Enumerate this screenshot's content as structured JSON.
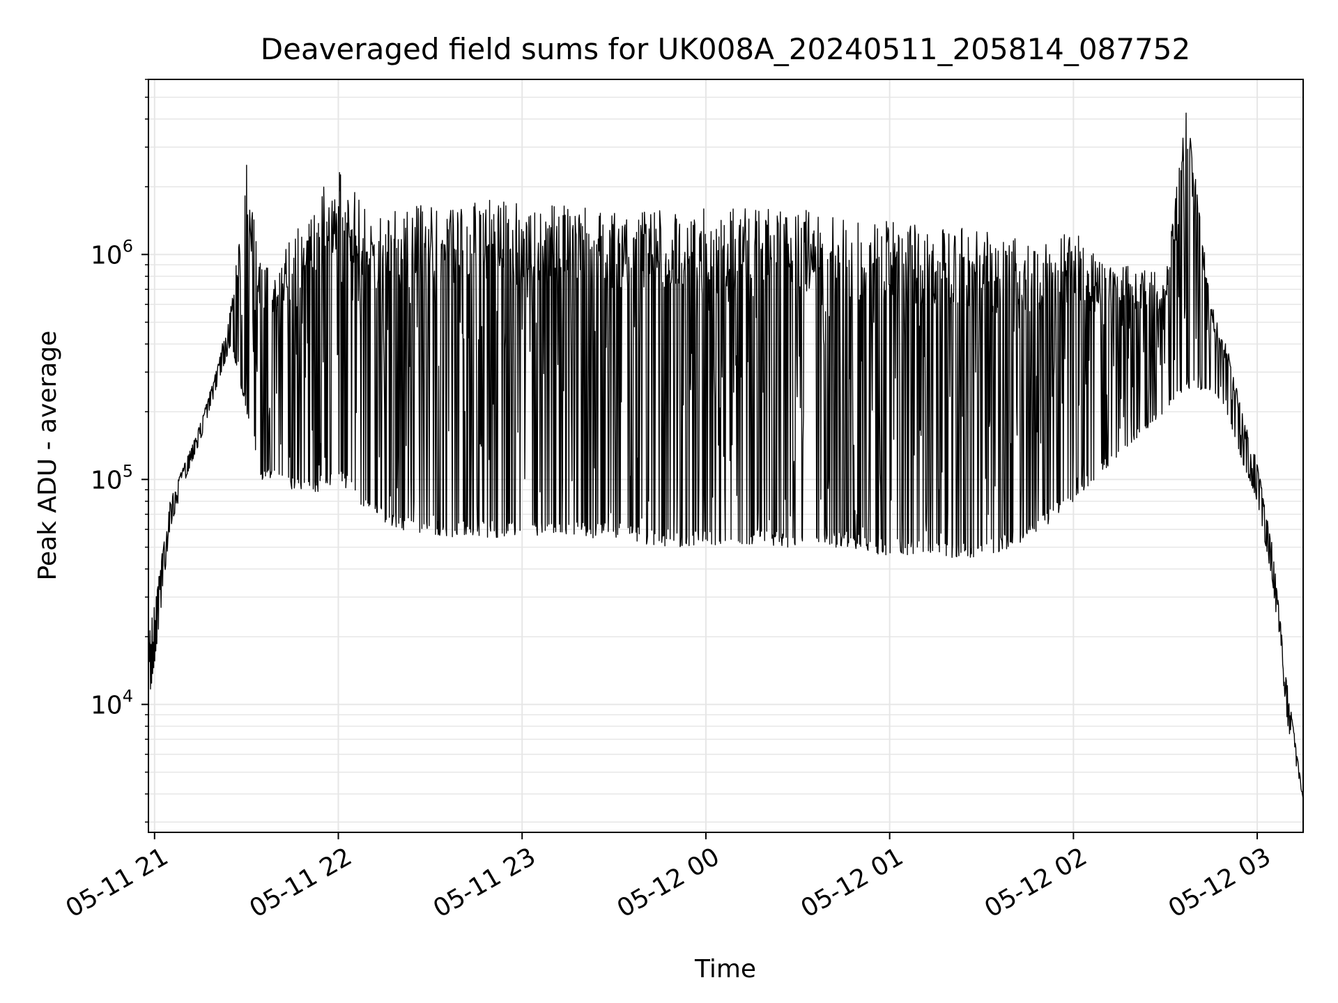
{
  "chart_data": {
    "type": "line",
    "title": "Deaveraged field sums for UK008A_20240511_205814_087752",
    "xlabel": "Time",
    "ylabel": "Peak ADU - average",
    "y_scale": "log",
    "grid": true,
    "line_color": "#000000",
    "grid_color": "#e6e6e6",
    "xlim": [
      "2024-05-11 20:58",
      "2024-05-12 03:15"
    ],
    "ylim": [
      2700,
      6000000
    ],
    "x_ticks": [
      {
        "value": "2024-05-11 21:00",
        "label": "05-11 21"
      },
      {
        "value": "2024-05-11 22:00",
        "label": "05-11 22"
      },
      {
        "value": "2024-05-11 23:00",
        "label": "05-11 23"
      },
      {
        "value": "2024-05-12 00:00",
        "label": "05-12 00"
      },
      {
        "value": "2024-05-12 01:00",
        "label": "05-12 01"
      },
      {
        "value": "2024-05-12 02:00",
        "label": "05-12 02"
      },
      {
        "value": "2024-05-12 03:00",
        "label": "05-12 03"
      }
    ],
    "y_ticks": [
      {
        "value": 10000,
        "base": "10",
        "exp": "4"
      },
      {
        "value": 100000,
        "base": "10",
        "exp": "5"
      },
      {
        "value": 1000000,
        "base": "10",
        "exp": "6"
      }
    ],
    "series": [
      {
        "x": [
          "2024-05-11 20:58",
          "2024-05-11 21:00",
          "2024-05-11 21:05",
          "2024-05-11 21:10",
          "2024-05-11 21:15",
          "2024-05-11 21:20",
          "2024-05-11 21:25",
          "2024-05-11 21:30",
          "2024-05-11 21:35",
          "2024-05-11 21:40",
          "2024-05-11 21:45",
          "2024-05-11 21:50",
          "2024-05-11 21:55",
          "2024-05-11 22:00",
          "2024-05-11 22:10",
          "2024-05-11 22:20",
          "2024-05-11 22:30",
          "2024-05-11 22:40",
          "2024-05-11 22:50",
          "2024-05-11 23:00",
          "2024-05-11 23:15",
          "2024-05-11 23:30",
          "2024-05-11 23:45",
          "2024-05-12 00:00",
          "2024-05-12 00:15",
          "2024-05-12 00:30",
          "2024-05-12 00:45",
          "2024-05-12 01:00",
          "2024-05-12 01:15",
          "2024-05-12 01:30",
          "2024-05-12 01:40",
          "2024-05-12 01:50",
          "2024-05-12 02:00",
          "2024-05-12 02:10",
          "2024-05-12 02:20",
          "2024-05-12 02:30",
          "2024-05-12 02:37",
          "2024-05-12 02:45",
          "2024-05-12 02:50",
          "2024-05-12 02:55",
          "2024-05-12 03:00",
          "2024-05-12 03:05",
          "2024-05-12 03:10",
          "2024-05-12 03:15"
        ],
        "envelope_high": [
          20000,
          30000,
          80000,
          120000,
          180000,
          300000,
          600000,
          2600000,
          900000,
          1000000,
          1300000,
          1500000,
          2000000,
          2400000,
          1600000,
          1600000,
          1700000,
          1700000,
          1800000,
          1700000,
          1700000,
          1600000,
          1700000,
          1600000,
          1600000,
          1600000,
          1500000,
          1400000,
          1400000,
          1300000,
          1200000,
          1100000,
          1300000,
          900000,
          900000,
          800000,
          4500000,
          600000,
          400000,
          200000,
          120000,
          50000,
          12000,
          3800
        ],
        "envelope_low": [
          10000,
          15000,
          60000,
          100000,
          150000,
          250000,
          400000,
          200000,
          100000,
          100000,
          90000,
          85000,
          90000,
          100000,
          70000,
          60000,
          55000,
          55000,
          55000,
          55000,
          55000,
          55000,
          50000,
          50000,
          50000,
          50000,
          50000,
          45000,
          45000,
          45000,
          50000,
          60000,
          80000,
          110000,
          150000,
          200000,
          250000,
          250000,
          200000,
          120000,
          80000,
          35000,
          8000,
          3800
        ]
      }
    ]
  }
}
